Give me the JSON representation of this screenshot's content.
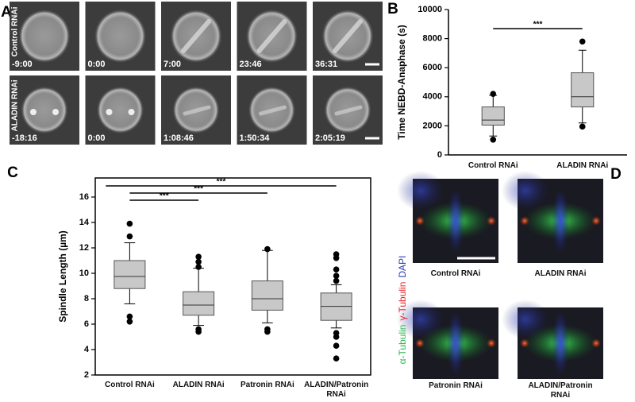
{
  "panel_labels": [
    "A",
    "B",
    "C",
    "D"
  ],
  "panel_a": {
    "rows": [
      {
        "label": "Control RNAi",
        "times": [
          "-9:00",
          "0:00",
          "7:00",
          "23:46",
          "36:31"
        ]
      },
      {
        "label": "ALADIN RNAi",
        "times": [
          "-18:16",
          "0:00",
          "1:08:46",
          "1:50:34",
          "2:05:19"
        ]
      }
    ]
  },
  "chart_data": [
    {
      "type": "box",
      "y_label": "Time NEBD-Anaphase (s)",
      "categories": [
        "Control RNAi",
        "ALADIN RNAi"
      ],
      "color": "#c8c8c8",
      "frame": false,
      "ylim": [
        0,
        10000
      ],
      "yticks": [
        0,
        2000,
        4000,
        6000,
        8000,
        10000
      ],
      "boxes": [
        {
          "whisker_low": 1300,
          "q1": 2050,
          "median": 2400,
          "q3": 3300,
          "whisker_high": 4100,
          "outliers": [
            4200,
            1050
          ]
        },
        {
          "whisker_low": 2200,
          "q1": 3300,
          "median": 4000,
          "q3": 5650,
          "whisker_high": 7200,
          "outliers": [
            7800,
            1950
          ]
        }
      ],
      "significance": [
        {
          "from": "Control RNAi",
          "to": "ALADIN RNAi",
          "text": "***"
        }
      ]
    },
    {
      "type": "box",
      "y_label": "Spindle Length (µm)",
      "categories": [
        "Control RNAi",
        "ALADIN RNAi",
        "Patronin RNAi",
        "ALADIN/Patronin RNAi"
      ],
      "color": "#c8c8c8",
      "frame": true,
      "ylim": [
        2,
        17.5
      ],
      "yticks": [
        2,
        4,
        6,
        8,
        10,
        12,
        14,
        16
      ],
      "boxes": [
        {
          "whisker_low": 7.6,
          "q1": 8.8,
          "median": 9.75,
          "q3": 11.0,
          "whisker_high": 12.4,
          "outliers": [
            13.9,
            12.9,
            6.6,
            6.2
          ]
        },
        {
          "whisker_low": 5.9,
          "q1": 6.7,
          "median": 7.5,
          "q3": 8.55,
          "whisker_high": 10.4,
          "outliers": [
            11.3,
            10.9,
            10.5,
            5.6,
            5.4
          ]
        },
        {
          "whisker_low": 6.1,
          "q1": 7.1,
          "median": 8.0,
          "q3": 9.4,
          "whisker_high": 11.8,
          "outliers": [
            11.9,
            5.6,
            5.4
          ]
        },
        {
          "whisker_low": 5.7,
          "q1": 6.3,
          "median": 7.4,
          "q3": 8.45,
          "whisker_high": 9.1,
          "outliers": [
            11.5,
            11.2,
            10.3,
            9.8,
            9.4,
            5.3,
            5.0,
            4.3,
            3.3
          ]
        }
      ],
      "significance": [
        {
          "from": "Control RNAi",
          "to": "ALADIN RNAi",
          "text": "***"
        },
        {
          "from": "Control RNAi",
          "to": "Patronin RNAi",
          "text": "***"
        },
        {
          "from": "Control RNAi",
          "to": "ALADIN/Patronin RNAi",
          "text": "***"
        }
      ]
    }
  ],
  "panel_d": {
    "stains": [
      {
        "text": "α-Tubulin",
        "color": "#2db84d"
      },
      {
        "text": "γ-Tubulin",
        "color": "#e8262a"
      },
      {
        "text": "DAPI",
        "color": "#2a3db0"
      }
    ],
    "images": [
      "Control RNAi",
      "ALADIN RNAi",
      "Patronin RNAi",
      "ALADIN/Patronin RNAi"
    ]
  }
}
